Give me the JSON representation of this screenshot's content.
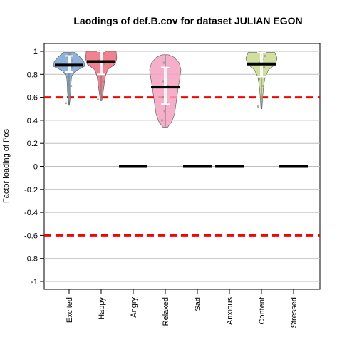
{
  "chart_data": {
    "type": "violin",
    "title": "Laodings of def.B.cov for dataset JULIAN EGON",
    "xlabel": "",
    "ylabel": "Factor loading of Pos",
    "ylim": [
      -1.05,
      1.05
    ],
    "y_ticks": [
      1,
      0.8,
      0.6,
      0.4,
      0.2,
      0,
      -0.2,
      -0.4,
      -0.6,
      -0.8,
      -1
    ],
    "grid": "horizontal",
    "reference_lines": [
      0.6,
      -0.6
    ],
    "reference_line_color": "#ff0000",
    "categories": [
      "Excited",
      "Happy",
      "Angry",
      "Relaxed",
      "Sad",
      "Anxious",
      "Content",
      "Stressed"
    ],
    "groups": [
      {
        "category": "Excited",
        "color": "#7aa6d4",
        "mean": 0.88,
        "ci": [
          0.82,
          0.96
        ],
        "min": 0.53,
        "max": 0.99,
        "density": [
          [
            0.53,
            0.02
          ],
          [
            0.58,
            0.06
          ],
          [
            0.65,
            0.1
          ],
          [
            0.72,
            0.12
          ],
          [
            0.78,
            0.16
          ],
          [
            0.83,
            0.42
          ],
          [
            0.87,
            1.0
          ],
          [
            0.91,
            0.95
          ],
          [
            0.95,
            0.7
          ],
          [
            0.99,
            0.35
          ]
        ],
        "points": [
          0.55,
          0.62,
          0.7,
          0.78,
          0.84,
          0.86,
          0.88,
          0.9,
          0.92,
          0.95,
          0.97
        ]
      },
      {
        "category": "Happy",
        "color": "#f06b7d",
        "mean": 0.91,
        "ci": [
          0.8,
          1.0
        ],
        "min": 0.57,
        "max": 1.0,
        "density": [
          [
            0.57,
            0.04
          ],
          [
            0.62,
            0.1
          ],
          [
            0.7,
            0.18
          ],
          [
            0.78,
            0.26
          ],
          [
            0.84,
            0.42
          ],
          [
            0.89,
            0.9
          ],
          [
            0.94,
            1.0
          ],
          [
            1.0,
            0.95
          ]
        ],
        "points": [
          0.58,
          0.66,
          0.74,
          0.8,
          0.85,
          0.89,
          0.92,
          0.95,
          0.98,
          1.0
        ]
      },
      {
        "category": "Angry",
        "color": "#888888",
        "mean": 0.0,
        "ci": [
          0.0,
          0.0
        ],
        "min": 0.0,
        "max": 0.0,
        "density": [],
        "points": []
      },
      {
        "category": "Relaxed",
        "color": "#f4a0c0",
        "mean": 0.69,
        "ci": [
          0.54,
          0.86
        ],
        "min": 0.34,
        "max": 0.97,
        "density": [
          [
            0.34,
            0.15
          ],
          [
            0.39,
            0.42
          ],
          [
            0.45,
            0.58
          ],
          [
            0.52,
            0.66
          ],
          [
            0.6,
            0.74
          ],
          [
            0.68,
            0.82
          ],
          [
            0.76,
            0.92
          ],
          [
            0.84,
            1.0
          ],
          [
            0.9,
            0.88
          ],
          [
            0.95,
            0.55
          ],
          [
            0.97,
            0.2
          ]
        ],
        "points": [
          0.4,
          0.48,
          0.55,
          0.6,
          0.64,
          0.7,
          0.74,
          0.8,
          0.86,
          0.9
        ]
      },
      {
        "category": "Sad",
        "color": "#888888",
        "mean": 0.0,
        "ci": [
          0.0,
          0.0
        ],
        "min": 0.0,
        "max": 0.0,
        "density": [],
        "points": []
      },
      {
        "category": "Anxious",
        "color": "#888888",
        "mean": 0.0,
        "ci": [
          0.0,
          0.0
        ],
        "min": 0.0,
        "max": 0.0,
        "density": [],
        "points": []
      },
      {
        "category": "Content",
        "color": "#c9dc8c",
        "mean": 0.89,
        "ci": [
          0.78,
          0.99
        ],
        "min": 0.5,
        "max": 0.99,
        "density": [
          [
            0.5,
            0.03
          ],
          [
            0.56,
            0.06
          ],
          [
            0.64,
            0.1
          ],
          [
            0.72,
            0.16
          ],
          [
            0.78,
            0.24
          ],
          [
            0.84,
            0.46
          ],
          [
            0.89,
            0.9
          ],
          [
            0.94,
            1.0
          ],
          [
            0.99,
            0.85
          ]
        ],
        "points": [
          0.52,
          0.6,
          0.7,
          0.76,
          0.82,
          0.86,
          0.9,
          0.93,
          0.96,
          0.99
        ]
      },
      {
        "category": "Stressed",
        "color": "#888888",
        "mean": 0.0,
        "ci": [
          0.0,
          0.0
        ],
        "min": 0.0,
        "max": 0.0,
        "density": [],
        "points": []
      }
    ]
  }
}
